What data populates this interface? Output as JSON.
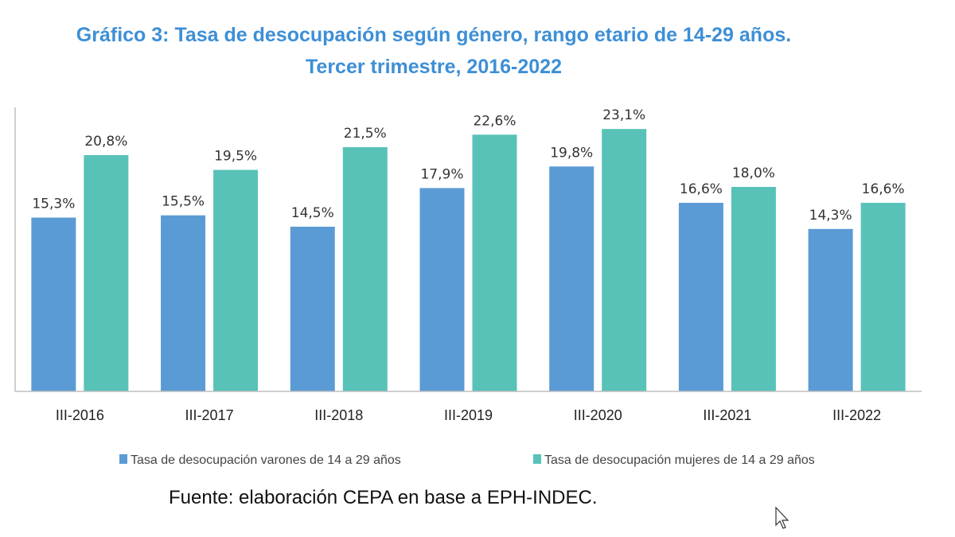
{
  "chart_data": {
    "type": "bar",
    "title": "Gráfico 3: Tasa de desocupación según género, rango etario de 14-29 años.",
    "subtitle": "Tercer trimestre, 2016-2022",
    "categories": [
      "III-2016",
      "III-2017",
      "III-2018",
      "III-2019",
      "III-2020",
      "III-2021",
      "III-2022"
    ],
    "series": [
      {
        "name": "Tasa de desocupación varones de 14 a 29 años",
        "color": "#5b9bd5",
        "values": [
          15.3,
          15.5,
          14.5,
          17.9,
          19.8,
          16.6,
          14.3
        ],
        "labels": [
          "15,3%",
          "15,5%",
          "14,5%",
          "17,9%",
          "19,8%",
          "16,6%",
          "14,3%"
        ]
      },
      {
        "name": "Tasa de desocupación mujeres de 14 a 29 años",
        "color": "#58c2b8",
        "values": [
          20.8,
          19.5,
          21.5,
          22.6,
          23.1,
          18.0,
          16.6
        ],
        "labels": [
          "20,8%",
          "19,5%",
          "21,5%",
          "22,6%",
          "23,1%",
          "18,0%",
          "16,6%"
        ]
      }
    ],
    "ylim": [
      0,
      25
    ],
    "xlabel": "",
    "ylabel": "",
    "grid": false,
    "legend_position": "bottom"
  },
  "source": "Fuente: elaboración CEPA en base a EPH-INDEC."
}
